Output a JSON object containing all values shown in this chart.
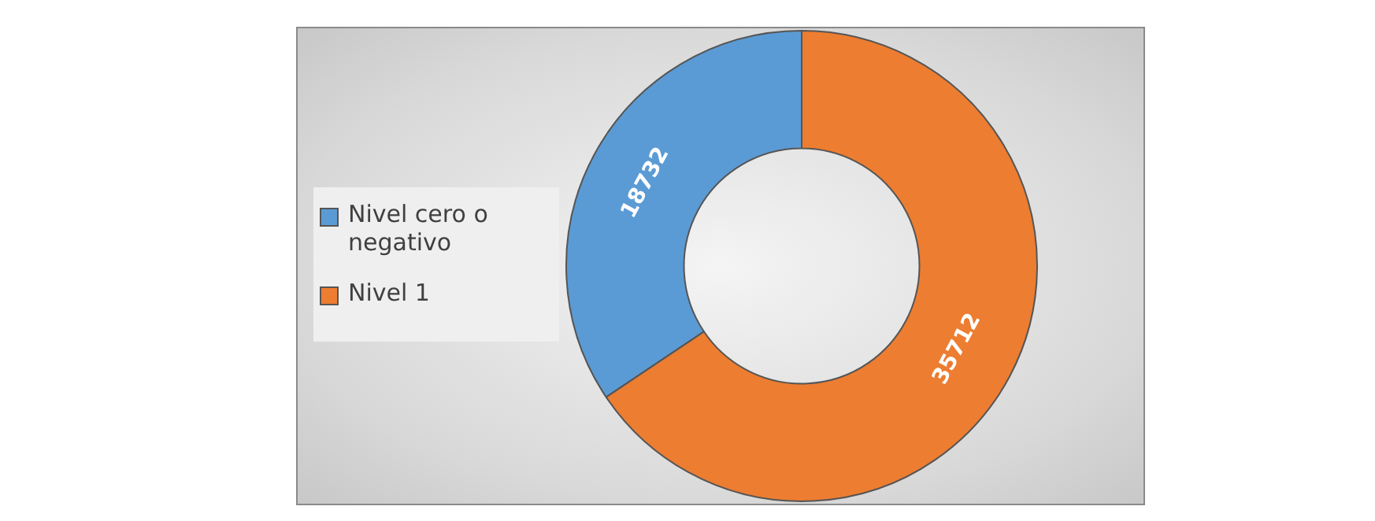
{
  "chart_data": {
    "type": "donut",
    "categories": [
      "Nivel cero o negativo",
      "Nivel 1"
    ],
    "values": [
      18732,
      35712
    ],
    "colors": [
      "#5b9bd5",
      "#ed7d31"
    ],
    "data_labels": true,
    "legend": "left"
  }
}
